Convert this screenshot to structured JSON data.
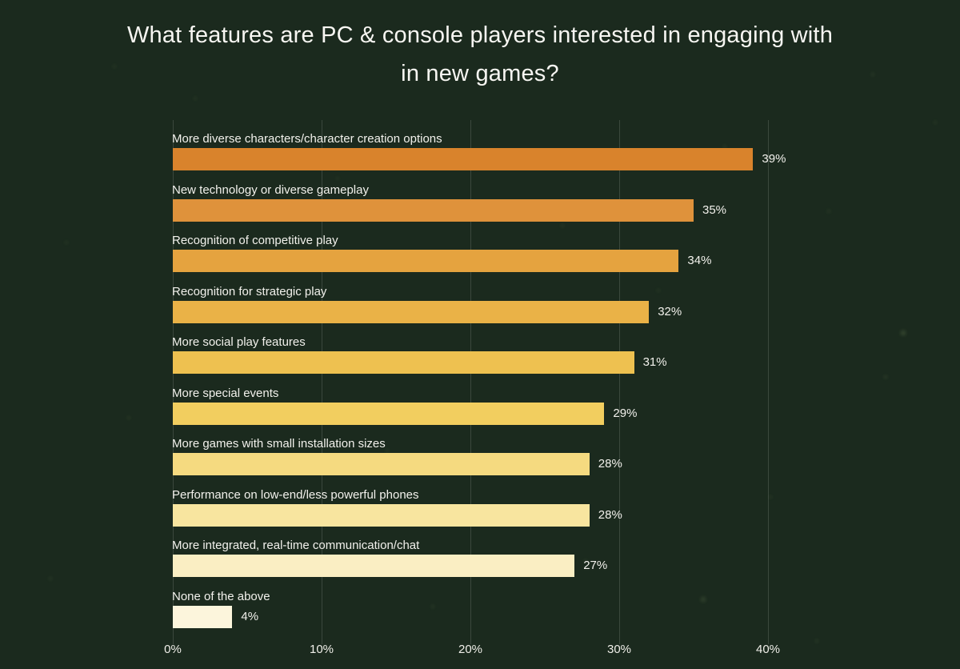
{
  "page": {
    "background_color": "#1b2a1e",
    "text_color": "#f5f4ef",
    "gridline_color": "rgba(255,255,255,0.14)"
  },
  "title": {
    "line1": "What features are PC & console players interested in engaging with",
    "line2": "in new games?"
  },
  "chart_data": {
    "type": "bar",
    "orientation": "horizontal",
    "title": "What features are PC & console players interested in engaging with in new games?",
    "categories": [
      "More diverse characters/character creation options",
      "New technology or diverse gameplay",
      "Recognition of competitive play",
      "Recognition for strategic play",
      "More social play features",
      "More special events",
      "More games with small installation sizes",
      "Performance on low-end/less powerful phones",
      "More integrated, real-time communication/chat",
      "None of the above"
    ],
    "values": [
      39,
      35,
      34,
      32,
      31,
      29,
      28,
      28,
      27,
      4
    ],
    "value_labels": [
      "39%",
      "35%",
      "34%",
      "32%",
      "31%",
      "29%",
      "28%",
      "28%",
      "27%",
      "4%"
    ],
    "bar_colors": [
      "#d9832c",
      "#df923b",
      "#e5a33f",
      "#eab247",
      "#eec150",
      "#f2ce5f",
      "#f5da80",
      "#f8e59f",
      "#faeec3",
      "#fcf5dc"
    ],
    "x_ticks": [
      "0%",
      "10%",
      "20%",
      "30%",
      "40%"
    ],
    "x_tick_values": [
      0,
      10,
      20,
      30,
      40
    ],
    "xlim": [
      0,
      40
    ],
    "grid": "vertical",
    "legend": "none"
  }
}
